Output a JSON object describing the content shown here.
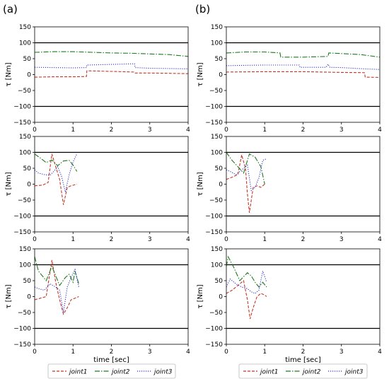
{
  "chart_data": {
    "type": "line",
    "shared": {
      "ylabel": "τ [Nm]",
      "xlabel": "time [sec]",
      "xlim": [
        0,
        4
      ],
      "ylim": [
        -150,
        150
      ],
      "xticks": [
        "0",
        "1",
        "2",
        "3",
        "4"
      ],
      "yticks": [
        "150",
        "100",
        "50",
        "0",
        "−50",
        "−100",
        "−150"
      ],
      "reference_lines": [
        100,
        -100
      ],
      "legend_position": "bottom",
      "series_styles": {
        "joint1": {
          "color": "#c0392b",
          "dash": "dashed"
        },
        "joint2": {
          "color": "#1e7a1e",
          "dash": "dash-dot"
        },
        "joint3": {
          "color": "#3333cc",
          "dash": "dotted"
        }
      }
    },
    "panel_labels": [
      "(a)",
      "(b)"
    ],
    "legend": {
      "left": [
        "joint1",
        "joint2",
        "joint3"
      ],
      "right": [
        "joint1",
        "joint2",
        "joint3"
      ]
    },
    "panels": [
      {
        "id": "a-top",
        "col": 0,
        "row": 0,
        "series": [
          {
            "name": "joint1",
            "x": [
              0,
              0.5,
              1.0,
              1.35,
              1.36,
              2.0,
              2.6,
              2.62,
              3.0,
              3.5,
              4.0
            ],
            "y": [
              -8,
              -7,
              -7,
              -6,
              12,
              10,
              8,
              5,
              5,
              4,
              3
            ]
          },
          {
            "name": "joint2",
            "x": [
              0,
              0.5,
              1.0,
              1.5,
              2.0,
              2.5,
              3.0,
              3.5,
              4.0
            ],
            "y": [
              70,
              72,
              72,
              70,
              68,
              67,
              65,
              63,
              57
            ]
          },
          {
            "name": "joint3",
            "x": [
              0,
              0.5,
              1.0,
              1.35,
              1.36,
              2.0,
              2.6,
              2.62,
              3.0,
              3.5,
              4.0
            ],
            "y": [
              23,
              22,
              21,
              22,
              30,
              32,
              34,
              22,
              20,
              19,
              18
            ]
          }
        ]
      },
      {
        "id": "b-top",
        "col": 1,
        "row": 0,
        "series": [
          {
            "name": "joint1",
            "x": [
              0,
              1.0,
              2.0,
              3.0,
              3.6,
              3.62,
              4.0
            ],
            "y": [
              8,
              9,
              9,
              7,
              6,
              -8,
              -9
            ]
          },
          {
            "name": "joint2",
            "x": [
              0,
              0.5,
              1.0,
              1.4,
              1.42,
              2.0,
              2.65,
              2.67,
              3.0,
              3.5,
              4.0
            ],
            "y": [
              68,
              71,
              71,
              68,
              55,
              55,
              57,
              68,
              66,
              63,
              55
            ]
          },
          {
            "name": "joint3",
            "x": [
              0,
              0.5,
              1.0,
              1.9,
              1.92,
              2.6,
              2.65,
              2.7,
              3.0,
              3.6,
              4.0
            ],
            "y": [
              28,
              29,
              30,
              30,
              23,
              23,
              33,
              23,
              22,
              18,
              16
            ]
          }
        ]
      },
      {
        "id": "a-mid",
        "col": 0,
        "row": 1,
        "series": [
          {
            "name": "joint1",
            "x": [
              0,
              0.2,
              0.35,
              0.45,
              0.55,
              0.65,
              0.75,
              0.85,
              0.95,
              1.1
            ],
            "y": [
              -5,
              -3,
              5,
              95,
              55,
              15,
              -65,
              -10,
              -5,
              0
            ]
          },
          {
            "name": "joint2",
            "x": [
              0,
              0.15,
              0.3,
              0.45,
              0.6,
              0.75,
              0.9,
              1.0,
              1.1
            ],
            "y": [
              95,
              82,
              68,
              76,
              58,
              73,
              75,
              60,
              40
            ]
          },
          {
            "name": "joint3",
            "x": [
              0,
              0.1,
              0.25,
              0.4,
              0.5,
              0.6,
              0.7,
              0.8,
              0.9,
              1.0,
              1.1
            ],
            "y": [
              45,
              35,
              30,
              28,
              40,
              55,
              25,
              -25,
              30,
              70,
              95
            ]
          }
        ]
      },
      {
        "id": "b-mid",
        "col": 1,
        "row": 1,
        "series": [
          {
            "name": "joint1",
            "x": [
              0,
              0.15,
              0.3,
              0.4,
              0.5,
              0.55,
              0.6,
              0.7,
              0.8,
              0.9,
              1.0
            ],
            "y": [
              15,
              22,
              30,
              92,
              50,
              -30,
              -90,
              -10,
              -5,
              -10,
              0
            ]
          },
          {
            "name": "joint2",
            "x": [
              0,
              0.15,
              0.3,
              0.45,
              0.6,
              0.75,
              0.9,
              1.0
            ],
            "y": [
              100,
              75,
              55,
              35,
              95,
              85,
              55,
              0
            ]
          },
          {
            "name": "joint3",
            "x": [
              0,
              0.1,
              0.25,
              0.4,
              0.55,
              0.65,
              0.75,
              0.85,
              0.95,
              1.05
            ],
            "y": [
              45,
              40,
              30,
              45,
              60,
              -20,
              -10,
              20,
              75,
              80
            ]
          }
        ]
      },
      {
        "id": "a-bot",
        "col": 0,
        "row": 2,
        "series": [
          {
            "name": "joint1",
            "x": [
              0,
              0.15,
              0.3,
              0.45,
              0.55,
              0.65,
              0.75,
              0.85,
              0.95,
              1.05,
              1.15
            ],
            "y": [
              -10,
              -5,
              0,
              115,
              45,
              -10,
              -55,
              -35,
              -10,
              -5,
              0
            ]
          },
          {
            "name": "joint2",
            "x": [
              0,
              0.1,
              0.3,
              0.45,
              0.65,
              0.8,
              0.9,
              1.0,
              1.05,
              1.15
            ],
            "y": [
              125,
              80,
              50,
              95,
              35,
              60,
              70,
              45,
              80,
              40
            ]
          },
          {
            "name": "joint3",
            "x": [
              0,
              0.1,
              0.25,
              0.4,
              0.55,
              0.65,
              0.75,
              0.85,
              0.95,
              1.05,
              1.15
            ],
            "y": [
              30,
              25,
              20,
              40,
              30,
              20,
              -50,
              30,
              60,
              85,
              30
            ]
          }
        ]
      },
      {
        "id": "b-bot",
        "col": 1,
        "row": 2,
        "series": [
          {
            "name": "joint1",
            "x": [
              0,
              0.15,
              0.3,
              0.45,
              0.55,
              0.62,
              0.7,
              0.8,
              0.9,
              1.0,
              1.05
            ],
            "y": [
              10,
              20,
              35,
              50,
              -10,
              -70,
              -35,
              0,
              10,
              5,
              0
            ]
          },
          {
            "name": "joint2",
            "x": [
              0,
              0.05,
              0.2,
              0.35,
              0.55,
              0.65,
              0.75,
              0.85,
              0.95,
              1.05
            ],
            "y": [
              95,
              125,
              90,
              50,
              75,
              65,
              45,
              30,
              45,
              30
            ]
          },
          {
            "name": "joint3",
            "x": [
              0,
              0.1,
              0.25,
              0.4,
              0.55,
              0.65,
              0.75,
              0.85,
              0.95,
              1.05
            ],
            "y": [
              30,
              55,
              40,
              30,
              25,
              15,
              10,
              20,
              80,
              45
            ]
          }
        ]
      }
    ]
  }
}
